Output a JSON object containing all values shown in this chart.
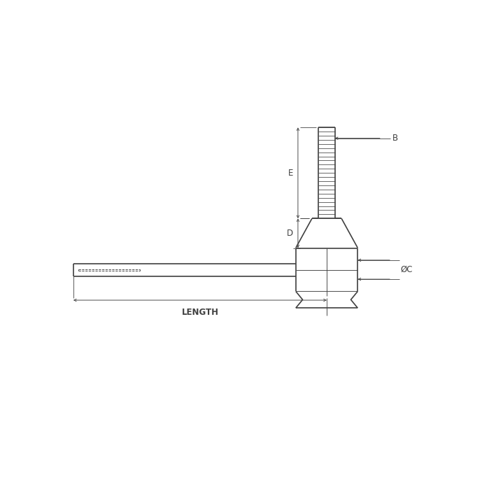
{
  "bg_color": "#ffffff",
  "line_color": "#404040",
  "lw": 1.2,
  "thin_lw": 0.65,
  "ext_lw": 0.6,
  "fig_size": [
    7.09,
    7.09
  ],
  "dpi": 100,
  "label_B": "B",
  "label_C": "ØC",
  "label_D": "D",
  "label_E": "E",
  "label_LENGTH": "LENGTH",
  "font_size": 8.5,
  "font_family": "sans-serif"
}
